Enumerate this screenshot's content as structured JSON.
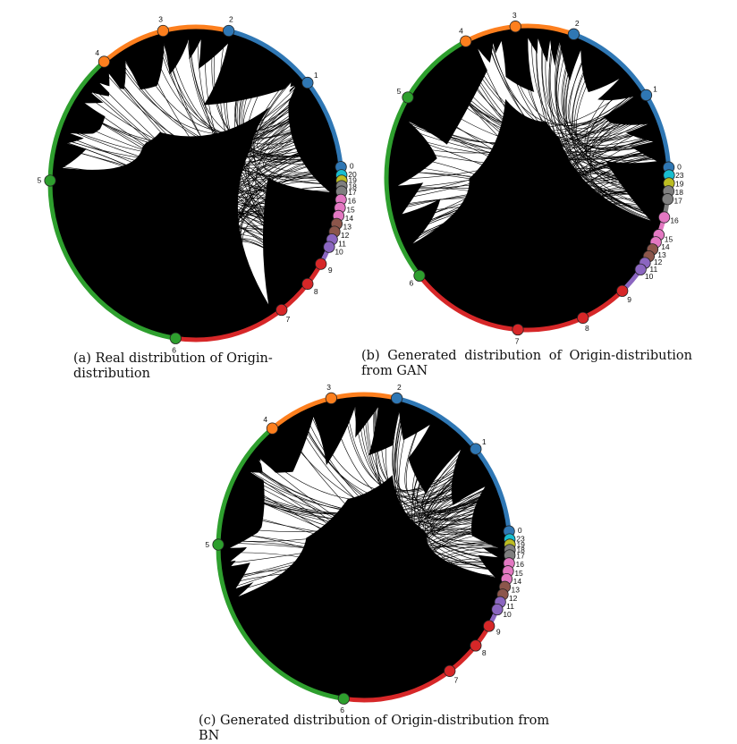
{
  "colors": {
    "blue": "#2f77b4",
    "orange": "#fd7f1e",
    "green": "#2e9f2e",
    "red": "#d62728",
    "purple": "#8b66c0",
    "brown": "#8c564b",
    "pink": "#e378c2",
    "gray": "#7f7f7f",
    "olive": "#bcbd22",
    "cyan": "#18bed0",
    "chords": "#000000"
  },
  "figures": [
    {
      "id": "a",
      "caption": "(a) Real distribution of Origin-distribution",
      "nodes": [
        {
          "label": "0",
          "angle": -6,
          "color": "blue"
        },
        {
          "label": "20",
          "angle": -3,
          "color": "cyan"
        },
        {
          "label": "19",
          "angle": -1,
          "color": "olive"
        },
        {
          "label": "18",
          "angle": 1,
          "color": "gray"
        },
        {
          "label": "17",
          "angle": 3,
          "color": "gray"
        },
        {
          "label": "16",
          "angle": 6,
          "color": "pink"
        },
        {
          "label": "15",
          "angle": 9,
          "color": "pink"
        },
        {
          "label": "14",
          "angle": 12,
          "color": "pink"
        },
        {
          "label": "13",
          "angle": 15,
          "color": "brown"
        },
        {
          "label": "12",
          "angle": 18,
          "color": "brown"
        },
        {
          "label": "11",
          "angle": 21,
          "color": "purple"
        },
        {
          "label": "10",
          "angle": 24,
          "color": "purple"
        },
        {
          "label": "9",
          "angle": 31,
          "color": "red"
        },
        {
          "label": "8",
          "angle": 40,
          "color": "red"
        },
        {
          "label": "7",
          "angle": 54,
          "color": "red"
        },
        {
          "label": "6",
          "angle": 98,
          "color": "green"
        },
        {
          "label": "5",
          "angle": 181,
          "color": "green"
        },
        {
          "label": "4",
          "angle": 231,
          "color": "orange"
        },
        {
          "label": "3",
          "angle": 257,
          "color": "orange"
        },
        {
          "label": "2",
          "angle": 283,
          "color": "blue"
        },
        {
          "label": "1",
          "angle": 320,
          "color": "blue"
        }
      ]
    },
    {
      "id": "b",
      "caption": "(b) Generated distribution of Origin-distribution from GAN",
      "nodes": [
        {
          "label": "0",
          "angle": -4,
          "color": "blue"
        },
        {
          "label": "23",
          "angle": -1,
          "color": "cyan"
        },
        {
          "label": "19",
          "angle": 2,
          "color": "olive"
        },
        {
          "label": "18",
          "angle": 5,
          "color": "gray"
        },
        {
          "label": "17",
          "angle": 8,
          "color": "gray"
        },
        {
          "label": "16",
          "angle": 15,
          "color": "pink"
        },
        {
          "label": "15",
          "angle": 22,
          "color": "pink"
        },
        {
          "label": "14",
          "angle": 25,
          "color": "pink"
        },
        {
          "label": "13",
          "angle": 28,
          "color": "brown"
        },
        {
          "label": "12",
          "angle": 31,
          "color": "brown"
        },
        {
          "label": "11",
          "angle": 34,
          "color": "purple"
        },
        {
          "label": "10",
          "angle": 37,
          "color": "purple"
        },
        {
          "label": "9",
          "angle": 48,
          "color": "red"
        },
        {
          "label": "8",
          "angle": 67,
          "color": "red"
        },
        {
          "label": "7",
          "angle": 94,
          "color": "red"
        },
        {
          "label": "6",
          "angle": 140,
          "color": "green"
        },
        {
          "label": "5",
          "angle": 212,
          "color": "green"
        },
        {
          "label": "4",
          "angle": 244,
          "color": "orange"
        },
        {
          "label": "3",
          "angle": 265,
          "color": "orange"
        },
        {
          "label": "2",
          "angle": 289,
          "color": "blue"
        },
        {
          "label": "1",
          "angle": 327,
          "color": "blue"
        }
      ]
    },
    {
      "id": "c",
      "caption": "(c) Generated distribution of Origin-distribution from BN",
      "nodes": [
        {
          "label": "0",
          "angle": -6,
          "color": "blue"
        },
        {
          "label": "23",
          "angle": -3,
          "color": "cyan"
        },
        {
          "label": "19",
          "angle": -1,
          "color": "olive"
        },
        {
          "label": "18",
          "angle": 1,
          "color": "gray"
        },
        {
          "label": "17",
          "angle": 3,
          "color": "gray"
        },
        {
          "label": "16",
          "angle": 6,
          "color": "pink"
        },
        {
          "label": "15",
          "angle": 9,
          "color": "pink"
        },
        {
          "label": "14",
          "angle": 12,
          "color": "pink"
        },
        {
          "label": "13",
          "angle": 15,
          "color": "brown"
        },
        {
          "label": "12",
          "angle": 18,
          "color": "brown"
        },
        {
          "label": "11",
          "angle": 21,
          "color": "purple"
        },
        {
          "label": "10",
          "angle": 24,
          "color": "purple"
        },
        {
          "label": "9",
          "angle": 31,
          "color": "red"
        },
        {
          "label": "8",
          "angle": 40,
          "color": "red"
        },
        {
          "label": "7",
          "angle": 54,
          "color": "red"
        },
        {
          "label": "6",
          "angle": 98,
          "color": "green"
        },
        {
          "label": "5",
          "angle": 181,
          "color": "green"
        },
        {
          "label": "4",
          "angle": 231,
          "color": "orange"
        },
        {
          "label": "3",
          "angle": 257,
          "color": "orange"
        },
        {
          "label": "2",
          "angle": 283,
          "color": "blue"
        },
        {
          "label": "1",
          "angle": 320,
          "color": "blue"
        }
      ]
    }
  ]
}
